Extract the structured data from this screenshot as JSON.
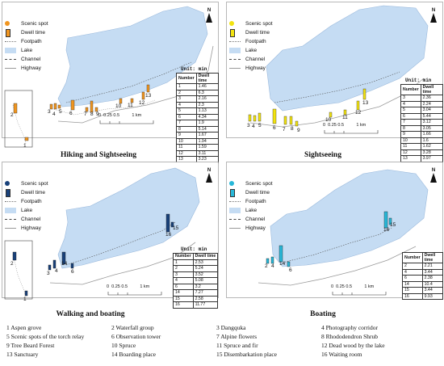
{
  "legend": {
    "scenic_spot": "Scenic spot",
    "dwell_time": "Dwell time",
    "footpath": "Footpath",
    "lake": "Lake",
    "channel": "Channel",
    "highway": "Highway"
  },
  "north_label": "N",
  "units_label": "Unit: min",
  "table_headers": {
    "number": "Number",
    "dwell": "Dwell time"
  },
  "scale_labels": [
    "0",
    "0.25",
    "0.5",
    "1 km"
  ],
  "colors": {
    "lake": "#c5dcf3",
    "hiking": "#f0951f",
    "sightseeing": "#f2e30f",
    "walking": "#19417a",
    "boating": "#27b7d8"
  },
  "panels": [
    {
      "id": "hiking",
      "caption": "Hiking and Sightseeing",
      "rows": [
        [
          "1",
          "1.46"
        ],
        [
          "2",
          "6.3"
        ],
        [
          "3",
          "2.16"
        ],
        [
          "4",
          "2.3"
        ],
        [
          "5",
          "1.13"
        ],
        [
          "6",
          "4.34"
        ],
        [
          "7",
          "1.9"
        ],
        [
          "8",
          "5.14"
        ],
        [
          "9",
          "1.67"
        ],
        [
          "10",
          "1.94"
        ],
        [
          "11",
          "1.59"
        ],
        [
          "12",
          "3.11"
        ],
        [
          "13",
          "3.23"
        ]
      ]
    },
    {
      "id": "sightseeing",
      "caption": "Sightseeing",
      "rows": [
        [
          "3",
          "2.36"
        ],
        [
          "4",
          "2.24"
        ],
        [
          "5",
          "3.04"
        ],
        [
          "6",
          "5.44"
        ],
        [
          "7",
          "3.12"
        ],
        [
          "8",
          "3.05"
        ],
        [
          "9",
          "1.66"
        ],
        [
          "10",
          "1.6"
        ],
        [
          "11",
          "1.62"
        ],
        [
          "12",
          "3.28"
        ],
        [
          "13",
          "3.97"
        ]
      ]
    },
    {
      "id": "walking",
      "caption": "Walking and boating",
      "rows": [
        [
          "1",
          "2.53"
        ],
        [
          "2",
          "5.24"
        ],
        [
          "3",
          "3.52"
        ],
        [
          "4",
          "5.08"
        ],
        [
          "6",
          "3.2"
        ],
        [
          "14",
          "7.27"
        ],
        [
          "15",
          "2.58"
        ],
        [
          "16",
          "11.77"
        ]
      ]
    },
    {
      "id": "boating",
      "caption": "Boating",
      "rows": [
        [
          "2",
          "2.21"
        ],
        [
          "4",
          "3.44"
        ],
        [
          "6",
          "2.38"
        ],
        [
          "14",
          "10.4"
        ],
        [
          "15",
          "3.44"
        ],
        [
          "16",
          "9.93"
        ]
      ]
    }
  ],
  "key": [
    "1 Aspen grove",
    "2 Waterfall group",
    "3 Dangquka",
    "4 Photography corridor",
    "5 Scenic spots of the torch relay",
    "6 Observation tower",
    "7 Alpine flowers",
    "8 Rhododendron Shrub",
    "9 Tree Beard Forest",
    "10 Spruce",
    "11 Spruce and fir",
    "12 Dead wood by the lake",
    "13 Sanctuary",
    "14 Boarding place",
    "15 Disembarkation place",
    "16 Waiting room"
  ]
}
